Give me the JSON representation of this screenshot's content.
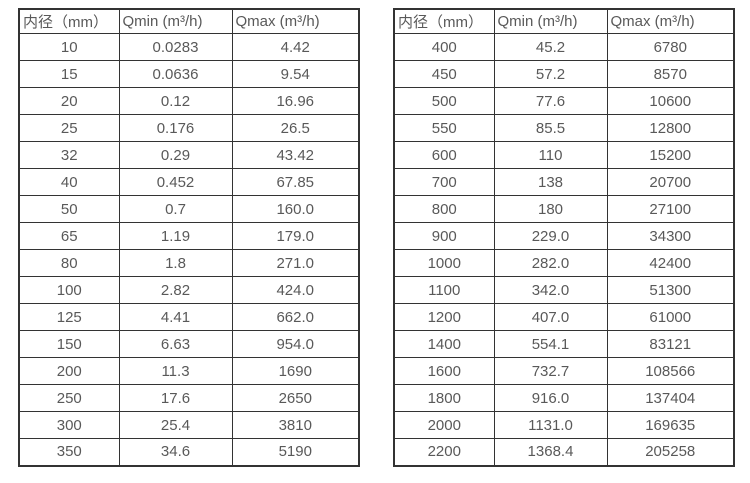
{
  "page": {
    "background_color": "#ffffff",
    "border_color": "#333333",
    "text_color": "#595959"
  },
  "chart_data": [
    {
      "type": "table",
      "columns": [
        "内径（mm）",
        "Qmin (m³/h)",
        "Qmax (m³/h)"
      ],
      "rows": [
        [
          "10",
          "0.0283",
          "4.42"
        ],
        [
          "15",
          "0.0636",
          "9.54"
        ],
        [
          "20",
          "0.12",
          "16.96"
        ],
        [
          "25",
          "0.176",
          "26.5"
        ],
        [
          "32",
          "0.29",
          "43.42"
        ],
        [
          "40",
          "0.452",
          "67.85"
        ],
        [
          "50",
          "0.7",
          "160.0"
        ],
        [
          "65",
          "1.19",
          "179.0"
        ],
        [
          "80",
          "1.8",
          "271.0"
        ],
        [
          "100",
          "2.82",
          "424.0"
        ],
        [
          "125",
          "4.41",
          "662.0"
        ],
        [
          "150",
          "6.63",
          "954.0"
        ],
        [
          "200",
          "11.3",
          "1690"
        ],
        [
          "250",
          "17.6",
          "2650"
        ],
        [
          "300",
          "25.4",
          "3810"
        ],
        [
          "350",
          "34.6",
          "5190"
        ]
      ]
    },
    {
      "type": "table",
      "columns": [
        "内径（mm）",
        "Qmin (m³/h)",
        "Qmax (m³/h)"
      ],
      "rows": [
        [
          "400",
          "45.2",
          "6780"
        ],
        [
          "450",
          "57.2",
          "8570"
        ],
        [
          "500",
          "77.6",
          "10600"
        ],
        [
          "550",
          "85.5",
          "12800"
        ],
        [
          "600",
          "110",
          "15200"
        ],
        [
          "700",
          "138",
          "20700"
        ],
        [
          "800",
          "180",
          "27100"
        ],
        [
          "900",
          "229.0",
          "34300"
        ],
        [
          "1000",
          "282.0",
          "42400"
        ],
        [
          "1100",
          "342.0",
          "51300"
        ],
        [
          "1200",
          "407.0",
          "61000"
        ],
        [
          "1400",
          "554.1",
          "83121"
        ],
        [
          "1600",
          "732.7",
          "108566"
        ],
        [
          "1800",
          "916.0",
          "137404"
        ],
        [
          "2000",
          "1131.0",
          "169635"
        ],
        [
          "2200",
          "1368.4",
          "205258"
        ]
      ]
    }
  ]
}
